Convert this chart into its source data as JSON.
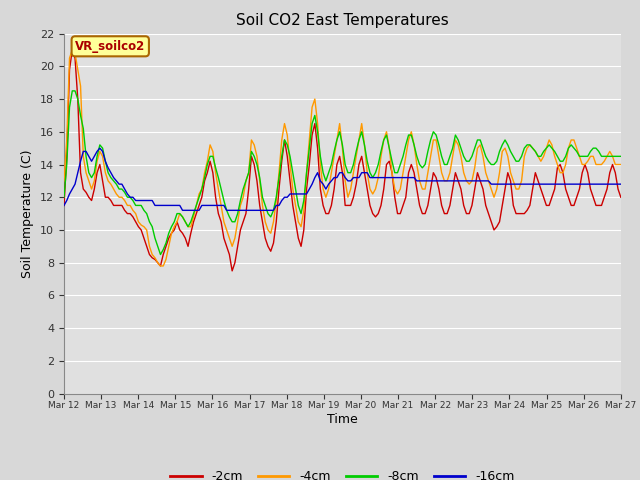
{
  "title": "Soil CO2 East Temperatures",
  "xlabel": "Time",
  "ylabel": "Soil Temperature (C)",
  "annotation_text": "VR_soilco2",
  "ylim": [
    0,
    22
  ],
  "yticks": [
    0,
    2,
    4,
    6,
    8,
    10,
    12,
    14,
    16,
    18,
    20,
    22
  ],
  "xtick_labels": [
    "Mar 12",
    "Mar 13",
    "Mar 14",
    "Mar 15",
    "Mar 16",
    "Mar 17",
    "Mar 18",
    "Mar 19",
    "Mar 20",
    "Mar 21",
    "Mar 22",
    "Mar 23",
    "Mar 24",
    "Mar 25",
    "Mar 26",
    "Mar 27"
  ],
  "n_days": 15,
  "series": {
    "-2cm": [
      11.5,
      14.5,
      19.8,
      21.0,
      20.5,
      18.0,
      13.5,
      12.5,
      12.3,
      12.0,
      11.8,
      12.5,
      13.5,
      14.0,
      13.0,
      12.0,
      12.0,
      11.8,
      11.5,
      11.5,
      11.5,
      11.5,
      11.2,
      11.0,
      11.0,
      10.8,
      10.5,
      10.2,
      10.0,
      9.5,
      9.0,
      8.5,
      8.3,
      8.2,
      8.0,
      7.8,
      8.5,
      9.0,
      9.5,
      9.8,
      10.0,
      10.5,
      10.0,
      9.8,
      9.5,
      9.0,
      9.8,
      10.5,
      11.0,
      11.5,
      12.0,
      13.0,
      13.5,
      14.2,
      13.5,
      12.0,
      11.0,
      10.5,
      9.5,
      9.0,
      8.5,
      7.5,
      8.0,
      9.0,
      10.0,
      10.5,
      11.0,
      12.5,
      14.5,
      14.0,
      13.0,
      11.5,
      10.5,
      9.5,
      9.0,
      8.7,
      9.2,
      10.5,
      12.5,
      14.2,
      15.5,
      14.5,
      13.0,
      11.5,
      10.5,
      9.5,
      9.0,
      10.0,
      12.5,
      14.0,
      15.8,
      16.5,
      15.0,
      12.5,
      11.5,
      11.0,
      11.0,
      11.5,
      12.5,
      14.0,
      14.5,
      13.5,
      11.5,
      11.5,
      11.5,
      12.0,
      12.8,
      14.0,
      14.5,
      13.5,
      12.5,
      11.5,
      11.0,
      10.8,
      11.0,
      11.5,
      12.5,
      14.0,
      14.2,
      13.5,
      12.0,
      11.0,
      11.0,
      11.5,
      12.0,
      13.5,
      14.0,
      13.5,
      12.5,
      11.5,
      11.0,
      11.0,
      11.5,
      12.5,
      13.5,
      13.2,
      12.5,
      11.5,
      11.0,
      11.0,
      11.5,
      12.5,
      13.5,
      13.0,
      12.5,
      11.5,
      11.0,
      11.0,
      11.5,
      12.5,
      13.5,
      13.0,
      12.5,
      11.5,
      11.0,
      10.5,
      10.0,
      10.2,
      10.5,
      11.5,
      12.5,
      13.5,
      13.0,
      11.5,
      11.0,
      11.0,
      11.0,
      11.0,
      11.2,
      11.5,
      12.5,
      13.5,
      13.0,
      12.5,
      12.0,
      11.5,
      11.5,
      12.0,
      12.5,
      13.8,
      14.0,
      13.5,
      12.5,
      12.0,
      11.5,
      11.5,
      12.0,
      12.5,
      13.5,
      14.0,
      13.5,
      12.5,
      12.0,
      11.5,
      11.5,
      11.5,
      12.0,
      12.5,
      13.5,
      14.0,
      13.5,
      12.5,
      12.0
    ],
    "-4cm": [
      13.0,
      15.5,
      20.5,
      21.0,
      20.8,
      19.8,
      18.8,
      14.5,
      13.5,
      13.0,
      12.5,
      13.0,
      14.2,
      14.8,
      14.5,
      13.5,
      13.0,
      12.8,
      12.5,
      12.2,
      12.0,
      12.0,
      11.8,
      11.5,
      11.5,
      11.2,
      11.0,
      10.5,
      10.3,
      10.2,
      10.0,
      9.0,
      8.5,
      8.3,
      8.0,
      7.8,
      7.8,
      8.2,
      9.0,
      9.8,
      10.2,
      10.5,
      11.0,
      10.8,
      10.5,
      10.2,
      10.2,
      10.8,
      11.5,
      12.2,
      12.5,
      13.5,
      14.2,
      15.2,
      14.8,
      13.5,
      12.5,
      11.5,
      10.5,
      10.0,
      9.5,
      9.0,
      9.5,
      10.5,
      11.5,
      12.0,
      13.0,
      13.5,
      15.5,
      15.2,
      14.5,
      13.0,
      11.5,
      10.5,
      10.0,
      9.8,
      10.5,
      11.8,
      13.5,
      15.5,
      16.5,
      15.8,
      14.0,
      12.5,
      11.5,
      10.5,
      10.2,
      11.2,
      13.5,
      15.5,
      17.5,
      18.0,
      16.5,
      14.0,
      12.5,
      12.0,
      12.5,
      13.5,
      14.5,
      15.5,
      16.5,
      15.0,
      13.0,
      12.0,
      12.5,
      13.5,
      14.5,
      15.5,
      16.5,
      15.2,
      13.5,
      12.5,
      12.2,
      12.5,
      13.2,
      14.5,
      15.5,
      16.0,
      15.0,
      13.5,
      12.5,
      12.2,
      12.5,
      13.5,
      14.5,
      15.5,
      16.0,
      15.2,
      14.0,
      13.0,
      12.5,
      12.5,
      13.5,
      14.5,
      15.5,
      15.5,
      14.5,
      13.5,
      13.0,
      13.0,
      13.5,
      14.5,
      15.5,
      15.2,
      14.5,
      13.5,
      13.0,
      12.8,
      13.0,
      13.8,
      15.0,
      15.2,
      14.5,
      13.5,
      13.0,
      12.5,
      12.0,
      12.5,
      13.5,
      14.8,
      15.0,
      14.5,
      13.5,
      13.0,
      12.5,
      12.5,
      13.0,
      14.5,
      15.0,
      15.2,
      15.0,
      14.8,
      14.5,
      14.2,
      14.5,
      15.0,
      15.5,
      15.2,
      14.5,
      14.0,
      13.5,
      13.5,
      14.0,
      15.0,
      15.5,
      15.5,
      15.0,
      14.5,
      14.0,
      14.0,
      14.2,
      14.5,
      14.5,
      14.0,
      14.0,
      14.0,
      14.2,
      14.5,
      14.8,
      14.5,
      14.0,
      14.0,
      14.0
    ],
    "-8cm": [
      12.0,
      14.0,
      17.5,
      18.5,
      18.5,
      18.0,
      17.0,
      16.2,
      14.5,
      13.5,
      13.2,
      13.5,
      14.5,
      15.2,
      15.0,
      14.2,
      13.5,
      13.2,
      13.0,
      12.8,
      12.5,
      12.5,
      12.3,
      12.0,
      12.0,
      11.8,
      11.5,
      11.5,
      11.5,
      11.2,
      11.0,
      10.5,
      10.2,
      9.5,
      9.0,
      8.5,
      8.8,
      9.2,
      9.8,
      10.2,
      10.5,
      11.0,
      11.0,
      10.8,
      10.5,
      10.2,
      10.5,
      11.0,
      11.5,
      12.0,
      12.5,
      13.2,
      14.0,
      14.5,
      14.5,
      13.8,
      13.2,
      12.5,
      11.8,
      11.2,
      10.8,
      10.5,
      10.5,
      11.0,
      11.8,
      12.5,
      13.0,
      13.5,
      14.8,
      14.5,
      14.0,
      13.2,
      12.0,
      11.5,
      11.0,
      10.8,
      11.2,
      12.0,
      13.2,
      14.5,
      15.5,
      15.2,
      14.5,
      13.5,
      12.5,
      11.5,
      11.0,
      11.8,
      13.5,
      15.0,
      16.5,
      17.0,
      16.0,
      14.5,
      13.5,
      13.0,
      13.5,
      14.0,
      14.8,
      15.5,
      16.0,
      15.2,
      14.0,
      13.5,
      13.5,
      14.0,
      14.8,
      15.5,
      16.0,
      15.2,
      14.2,
      13.5,
      13.2,
      13.5,
      14.0,
      14.8,
      15.5,
      15.8,
      15.0,
      14.2,
      13.5,
      13.5,
      14.0,
      14.5,
      15.2,
      15.8,
      15.8,
      15.2,
      14.5,
      14.0,
      13.8,
      14.0,
      14.8,
      15.5,
      16.0,
      15.8,
      15.2,
      14.5,
      14.0,
      14.0,
      14.5,
      15.0,
      15.8,
      15.5,
      15.0,
      14.5,
      14.2,
      14.2,
      14.5,
      15.0,
      15.5,
      15.5,
      15.0,
      14.5,
      14.2,
      14.0,
      14.0,
      14.2,
      14.8,
      15.2,
      15.5,
      15.2,
      14.8,
      14.5,
      14.2,
      14.2,
      14.5,
      15.0,
      15.2,
      15.2,
      15.0,
      14.8,
      14.5,
      14.5,
      14.8,
      15.0,
      15.2,
      15.0,
      14.8,
      14.5,
      14.2,
      14.2,
      14.5,
      15.0,
      15.2,
      15.0,
      14.8,
      14.5,
      14.5,
      14.5,
      14.5,
      14.8,
      15.0,
      15.0,
      14.8,
      14.5,
      14.5,
      14.5,
      14.5,
      14.5,
      14.5,
      14.5,
      14.5
    ],
    "-16cm": [
      11.5,
      11.8,
      12.2,
      12.5,
      12.8,
      13.5,
      14.2,
      14.8,
      14.8,
      14.5,
      14.2,
      14.5,
      14.8,
      15.0,
      14.8,
      14.2,
      13.8,
      13.5,
      13.2,
      13.0,
      12.8,
      12.8,
      12.5,
      12.2,
      12.0,
      12.0,
      11.8,
      11.8,
      11.8,
      11.8,
      11.8,
      11.8,
      11.8,
      11.5,
      11.5,
      11.5,
      11.5,
      11.5,
      11.5,
      11.5,
      11.5,
      11.5,
      11.5,
      11.2,
      11.2,
      11.2,
      11.2,
      11.2,
      11.2,
      11.2,
      11.5,
      11.5,
      11.5,
      11.5,
      11.5,
      11.5,
      11.5,
      11.5,
      11.5,
      11.2,
      11.2,
      11.2,
      11.2,
      11.2,
      11.2,
      11.2,
      11.2,
      11.2,
      11.2,
      11.2,
      11.2,
      11.2,
      11.2,
      11.2,
      11.2,
      11.2,
      11.2,
      11.5,
      11.5,
      11.8,
      12.0,
      12.0,
      12.2,
      12.2,
      12.2,
      12.2,
      12.2,
      12.2,
      12.2,
      12.5,
      12.8,
      13.2,
      13.5,
      13.0,
      12.8,
      12.5,
      12.8,
      13.0,
      13.2,
      13.2,
      13.5,
      13.5,
      13.2,
      13.0,
      13.0,
      13.2,
      13.2,
      13.2,
      13.5,
      13.5,
      13.5,
      13.2,
      13.2,
      13.2,
      13.2,
      13.2,
      13.2,
      13.2,
      13.2,
      13.2,
      13.2,
      13.2,
      13.2,
      13.2,
      13.2,
      13.2,
      13.2,
      13.2,
      13.0,
      13.0,
      13.0,
      13.0,
      13.0,
      13.0,
      13.0,
      13.0,
      13.0,
      13.0,
      13.0,
      13.0,
      13.0,
      13.0,
      13.0,
      13.0,
      13.0,
      13.0,
      13.0,
      13.0,
      13.0,
      13.0,
      13.0,
      13.0,
      13.0,
      13.0,
      13.0,
      12.8,
      12.8,
      12.8,
      12.8,
      12.8,
      12.8,
      12.8,
      12.8,
      12.8,
      12.8,
      12.8,
      12.8,
      12.8,
      12.8,
      12.8,
      12.8,
      12.8,
      12.8,
      12.8,
      12.8,
      12.8,
      12.8,
      12.8,
      12.8,
      12.8,
      12.8,
      12.8,
      12.8,
      12.8,
      12.8,
      12.8,
      12.8,
      12.8,
      12.8,
      12.8,
      12.8,
      12.8,
      12.8,
      12.8,
      12.8,
      12.8,
      12.8,
      12.8,
      12.8,
      12.8,
      12.8,
      12.8,
      12.8
    ]
  },
  "colors": {
    "-2cm": "#cc0000",
    "-4cm": "#ff9900",
    "-8cm": "#00cc00",
    "-16cm": "#0000cc"
  },
  "bg_color": "#d8d8d8",
  "plot_bg": "#e0e0e0",
  "grid_color": "#ffffff",
  "annotation_box_color": "#ffff99",
  "annotation_text_color": "#aa0000",
  "annotation_box_edge_color": "#aa6600"
}
